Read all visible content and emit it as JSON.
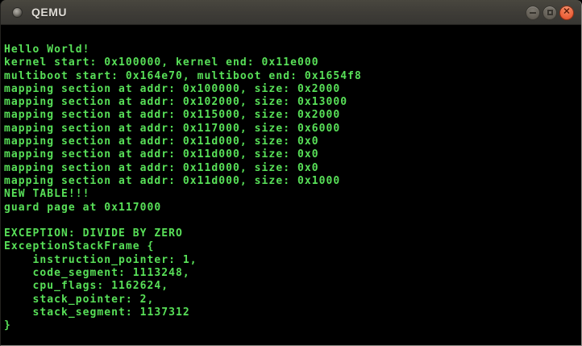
{
  "window": {
    "title": "QEMU",
    "controls": {
      "minimize_icon": "minimize-icon",
      "maximize_icon": "maximize-icon",
      "close_icon": "close-icon",
      "close_glyph": "✕"
    }
  },
  "colors": {
    "console_text": "#58e058",
    "console_bg": "#000000",
    "titlebar_bg": "#3e3c37",
    "titlebar_text": "#dfdcd6",
    "close_button": "#ee6740"
  },
  "console": {
    "lines": [
      "Hello World!",
      "kernel start: 0x100000, kernel end: 0x11e000",
      "multiboot start: 0x164e70, multiboot end: 0x1654f8",
      "mapping section at addr: 0x100000, size: 0x2000",
      "mapping section at addr: 0x102000, size: 0x13000",
      "mapping section at addr: 0x115000, size: 0x2000",
      "mapping section at addr: 0x117000, size: 0x6000",
      "mapping section at addr: 0x11d000, size: 0x0",
      "mapping section at addr: 0x11d000, size: 0x0",
      "mapping section at addr: 0x11d000, size: 0x0",
      "mapping section at addr: 0x11d000, size: 0x1000",
      "NEW TABLE!!!",
      "guard page at 0x117000",
      "",
      "EXCEPTION: DIVIDE BY ZERO",
      "ExceptionStackFrame {",
      "    instruction_pointer: 1,",
      "    code_segment: 1113248,",
      "    cpu_flags: 1162624,",
      "    stack_pointer: 2,",
      "    stack_segment: 1137312",
      "}"
    ]
  }
}
